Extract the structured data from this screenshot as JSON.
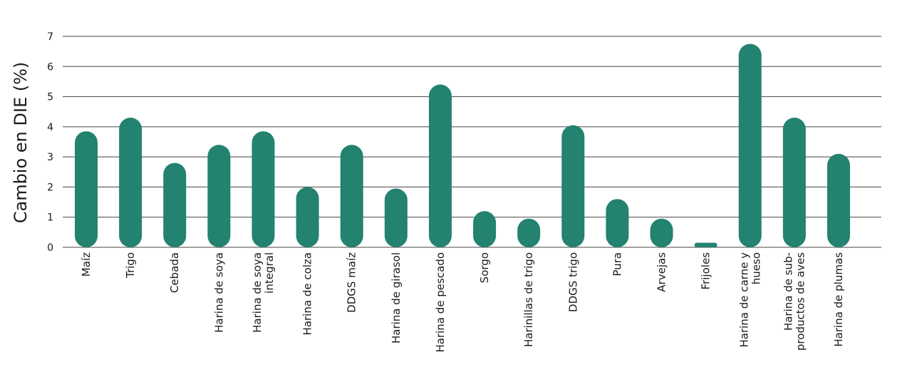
{
  "chart_data": {
    "type": "bar",
    "title": "",
    "xlabel": "",
    "ylabel": "Cambio en DIE (%)",
    "ylim": [
      0,
      7
    ],
    "yticks": [
      0,
      1,
      2,
      3,
      4,
      5,
      6,
      7
    ],
    "grid": true,
    "bar_color": "#238270",
    "categories": [
      [
        "Maíz"
      ],
      [
        "Trigo"
      ],
      [
        "Cebada"
      ],
      [
        "Harina de soya"
      ],
      [
        "Harina de soya",
        "integral"
      ],
      [
        "Harina de colza"
      ],
      [
        "DDGS maíz"
      ],
      [
        "Harina de girasol"
      ],
      [
        "Harina de pescado"
      ],
      [
        "Sorgo"
      ],
      [
        "Harinillas de trigo"
      ],
      [
        "DDGS trigo"
      ],
      [
        "Pura"
      ],
      [
        "Arvejas"
      ],
      [
        "Frijoles"
      ],
      [
        "Harina de carne y",
        "hueso"
      ],
      [
        "Harina de sub-",
        "productos de aves"
      ],
      [
        "Harina de plumas"
      ]
    ],
    "values": [
      3.85,
      4.3,
      2.8,
      3.4,
      3.85,
      2.0,
      3.4,
      1.95,
      5.4,
      1.2,
      0.95,
      4.05,
      1.6,
      0.95,
      0.15,
      6.75,
      4.3,
      3.1
    ]
  }
}
